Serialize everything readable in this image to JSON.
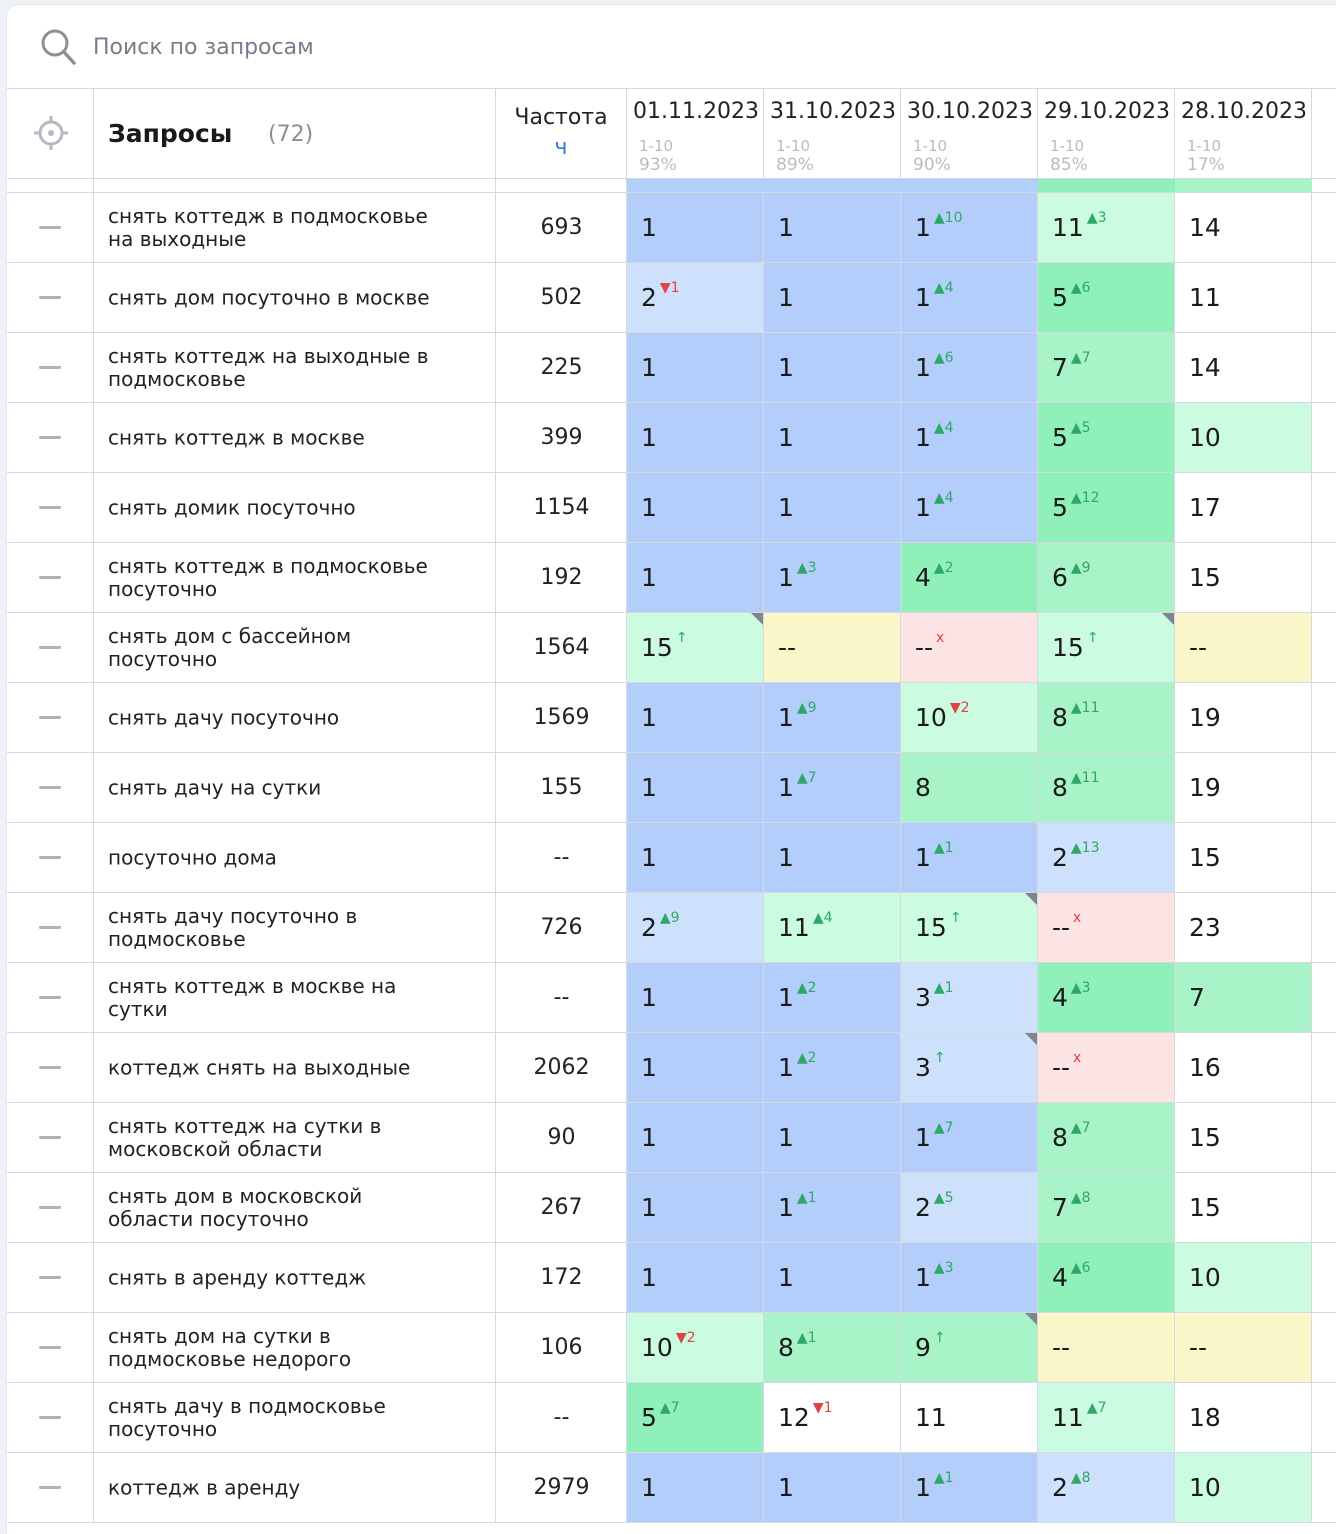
{
  "search": {
    "placeholder": "Поиск по запросам",
    "value": ""
  },
  "header": {
    "title": "Запросы",
    "count": "(72)",
    "freq_label": "Частота",
    "freq_sort": "ч",
    "dates": [
      {
        "date": "01.11.2023",
        "range": "1-10",
        "pct": "93%"
      },
      {
        "date": "31.10.2023",
        "range": "1-10",
        "pct": "89%"
      },
      {
        "date": "30.10.2023",
        "range": "1-10",
        "pct": "90%"
      },
      {
        "date": "29.10.2023",
        "range": "1-10",
        "pct": "85%"
      },
      {
        "date": "28.10.2023",
        "range": "1-10",
        "pct": "17%"
      }
    ]
  },
  "colors": {
    "top1": "#b3cefb",
    "top3": "#cde0fc",
    "top5": "#8ff0b9",
    "top10": "#a8f3c8",
    "top15": "#cbfbe0",
    "none": "#fbf6c9",
    "drop": "#fde4e4",
    "up": "#2ea868",
    "down": "#e04343"
  },
  "rows": [
    {
      "query": "снять коттедж в подмосковье на выходные",
      "freq": "693",
      "pos": [
        {
          "v": "1",
          "bg": "t1"
        },
        {
          "v": "1",
          "bg": "t1"
        },
        {
          "v": "1",
          "d": "▲10",
          "dir": "up",
          "bg": "t1"
        },
        {
          "v": "11",
          "d": "▲3",
          "dir": "up",
          "bg": "t15"
        },
        {
          "v": "14",
          "bg": "white"
        }
      ]
    },
    {
      "query": "снять дом посуточно в москве",
      "freq": "502",
      "pos": [
        {
          "v": "2",
          "d": "▼1",
          "dir": "down",
          "bg": "t3"
        },
        {
          "v": "1",
          "bg": "t1"
        },
        {
          "v": "1",
          "d": "▲4",
          "dir": "up",
          "bg": "t1"
        },
        {
          "v": "5",
          "d": "▲6",
          "dir": "up",
          "bg": "t5"
        },
        {
          "v": "11",
          "bg": "white"
        }
      ]
    },
    {
      "query": "снять коттедж на выходные в подмосковье",
      "freq": "225",
      "pos": [
        {
          "v": "1",
          "bg": "t1"
        },
        {
          "v": "1",
          "bg": "t1"
        },
        {
          "v": "1",
          "d": "▲6",
          "dir": "up",
          "bg": "t1"
        },
        {
          "v": "7",
          "d": "▲7",
          "dir": "up",
          "bg": "t10"
        },
        {
          "v": "14",
          "bg": "white"
        }
      ]
    },
    {
      "query": "снять коттедж в москве",
      "freq": "399",
      "pos": [
        {
          "v": "1",
          "bg": "t1"
        },
        {
          "v": "1",
          "bg": "t1"
        },
        {
          "v": "1",
          "d": "▲4",
          "dir": "up",
          "bg": "t1"
        },
        {
          "v": "5",
          "d": "▲5",
          "dir": "up",
          "bg": "t5"
        },
        {
          "v": "10",
          "bg": "t15"
        }
      ]
    },
    {
      "query": "снять домик посуточно",
      "freq": "1154",
      "pos": [
        {
          "v": "1",
          "bg": "t1"
        },
        {
          "v": "1",
          "bg": "t1"
        },
        {
          "v": "1",
          "d": "▲4",
          "dir": "up",
          "bg": "t1"
        },
        {
          "v": "5",
          "d": "▲12",
          "dir": "up",
          "bg": "t5"
        },
        {
          "v": "17",
          "bg": "white"
        }
      ]
    },
    {
      "query": "снять коттедж в подмосковье посуточно",
      "freq": "192",
      "pos": [
        {
          "v": "1",
          "bg": "t1"
        },
        {
          "v": "1",
          "d": "▲3",
          "dir": "up",
          "bg": "t1"
        },
        {
          "v": "4",
          "d": "▲2",
          "dir": "up",
          "bg": "t5"
        },
        {
          "v": "6",
          "d": "▲9",
          "dir": "up",
          "bg": "t10"
        },
        {
          "v": "15",
          "bg": "white"
        }
      ]
    },
    {
      "query": "снять дом с бассейном посуточно",
      "freq": "1564",
      "pos": [
        {
          "v": "15",
          "d": "↑",
          "dir": "up",
          "bg": "t15",
          "corner": true
        },
        {
          "v": "--",
          "bg": "none"
        },
        {
          "v": "--",
          "d": "x",
          "dir": "down",
          "bg": "drop"
        },
        {
          "v": "15",
          "d": "↑",
          "dir": "up",
          "bg": "t15",
          "corner": true
        },
        {
          "v": "--",
          "bg": "none"
        }
      ]
    },
    {
      "query": "снять дачу посуточно",
      "freq": "1569",
      "pos": [
        {
          "v": "1",
          "bg": "t1"
        },
        {
          "v": "1",
          "d": "▲9",
          "dir": "up",
          "bg": "t1"
        },
        {
          "v": "10",
          "d": "▼2",
          "dir": "down",
          "bg": "t15"
        },
        {
          "v": "8",
          "d": "▲11",
          "dir": "up",
          "bg": "t10"
        },
        {
          "v": "19",
          "bg": "white"
        }
      ]
    },
    {
      "query": "снять дачу на сутки",
      "freq": "155",
      "pos": [
        {
          "v": "1",
          "bg": "t1"
        },
        {
          "v": "1",
          "d": "▲7",
          "dir": "up",
          "bg": "t1"
        },
        {
          "v": "8",
          "bg": "t10"
        },
        {
          "v": "8",
          "d": "▲11",
          "dir": "up",
          "bg": "t10"
        },
        {
          "v": "19",
          "bg": "white"
        }
      ]
    },
    {
      "query": "посуточно дома",
      "freq": "--",
      "pos": [
        {
          "v": "1",
          "bg": "t1"
        },
        {
          "v": "1",
          "bg": "t1"
        },
        {
          "v": "1",
          "d": "▲1",
          "dir": "up",
          "bg": "t1"
        },
        {
          "v": "2",
          "d": "▲13",
          "dir": "up",
          "bg": "t3"
        },
        {
          "v": "15",
          "bg": "white"
        }
      ]
    },
    {
      "query": "снять дачу посуточно в подмосковье",
      "freq": "726",
      "pos": [
        {
          "v": "2",
          "d": "▲9",
          "dir": "up",
          "bg": "t3"
        },
        {
          "v": "11",
          "d": "▲4",
          "dir": "up",
          "bg": "t15"
        },
        {
          "v": "15",
          "d": "↑",
          "dir": "up",
          "bg": "t15",
          "corner": true
        },
        {
          "v": "--",
          "d": "x",
          "dir": "down",
          "bg": "drop"
        },
        {
          "v": "23",
          "bg": "white"
        }
      ]
    },
    {
      "query": "снять коттедж в москве на сутки",
      "freq": "--",
      "pos": [
        {
          "v": "1",
          "bg": "t1"
        },
        {
          "v": "1",
          "d": "▲2",
          "dir": "up",
          "bg": "t1"
        },
        {
          "v": "3",
          "d": "▲1",
          "dir": "up",
          "bg": "t3"
        },
        {
          "v": "4",
          "d": "▲3",
          "dir": "up",
          "bg": "t5"
        },
        {
          "v": "7",
          "bg": "t10"
        }
      ]
    },
    {
      "query": "коттедж снять на выходные",
      "freq": "2062",
      "pos": [
        {
          "v": "1",
          "bg": "t1"
        },
        {
          "v": "1",
          "d": "▲2",
          "dir": "up",
          "bg": "t1"
        },
        {
          "v": "3",
          "d": "↑",
          "dir": "up",
          "bg": "t3",
          "corner": true
        },
        {
          "v": "--",
          "d": "x",
          "dir": "down",
          "bg": "drop"
        },
        {
          "v": "16",
          "bg": "white"
        }
      ]
    },
    {
      "query": "снять коттедж на сутки в московской области",
      "freq": "90",
      "pos": [
        {
          "v": "1",
          "bg": "t1"
        },
        {
          "v": "1",
          "bg": "t1"
        },
        {
          "v": "1",
          "d": "▲7",
          "dir": "up",
          "bg": "t1"
        },
        {
          "v": "8",
          "d": "▲7",
          "dir": "up",
          "bg": "t10"
        },
        {
          "v": "15",
          "bg": "white"
        }
      ]
    },
    {
      "query": "снять дом в московской области посуточно",
      "freq": "267",
      "pos": [
        {
          "v": "1",
          "bg": "t1"
        },
        {
          "v": "1",
          "d": "▲1",
          "dir": "up",
          "bg": "t1"
        },
        {
          "v": "2",
          "d": "▲5",
          "dir": "up",
          "bg": "t3"
        },
        {
          "v": "7",
          "d": "▲8",
          "dir": "up",
          "bg": "t10"
        },
        {
          "v": "15",
          "bg": "white"
        }
      ]
    },
    {
      "query": "снять в аренду коттедж",
      "freq": "172",
      "pos": [
        {
          "v": "1",
          "bg": "t1"
        },
        {
          "v": "1",
          "bg": "t1"
        },
        {
          "v": "1",
          "d": "▲3",
          "dir": "up",
          "bg": "t1"
        },
        {
          "v": "4",
          "d": "▲6",
          "dir": "up",
          "bg": "t5"
        },
        {
          "v": "10",
          "bg": "t15"
        }
      ]
    },
    {
      "query": "снять дом на сутки в подмосковье недорого",
      "freq": "106",
      "pos": [
        {
          "v": "10",
          "d": "▼2",
          "dir": "down",
          "bg": "t15"
        },
        {
          "v": "8",
          "d": "▲1",
          "dir": "up",
          "bg": "t10"
        },
        {
          "v": "9",
          "d": "↑",
          "dir": "up",
          "bg": "t10",
          "corner": true
        },
        {
          "v": "--",
          "bg": "none"
        },
        {
          "v": "--",
          "bg": "none"
        }
      ]
    },
    {
      "query": "снять дачу в подмосковье посуточно",
      "freq": "--",
      "pos": [
        {
          "v": "5",
          "d": "▲7",
          "dir": "up",
          "bg": "t5"
        },
        {
          "v": "12",
          "d": "▼1",
          "dir": "down",
          "bg": "white"
        },
        {
          "v": "11",
          "bg": "white"
        },
        {
          "v": "11",
          "d": "▲7",
          "dir": "up",
          "bg": "t15"
        },
        {
          "v": "18",
          "bg": "white"
        }
      ]
    },
    {
      "query": "коттедж в аренду",
      "freq": "2979",
      "pos": [
        {
          "v": "1",
          "bg": "t1"
        },
        {
          "v": "1",
          "bg": "t1"
        },
        {
          "v": "1",
          "d": "▲1",
          "dir": "up",
          "bg": "t1"
        },
        {
          "v": "2",
          "d": "▲8",
          "dir": "up",
          "bg": "t3"
        },
        {
          "v": "10",
          "bg": "t15"
        }
      ]
    }
  ]
}
